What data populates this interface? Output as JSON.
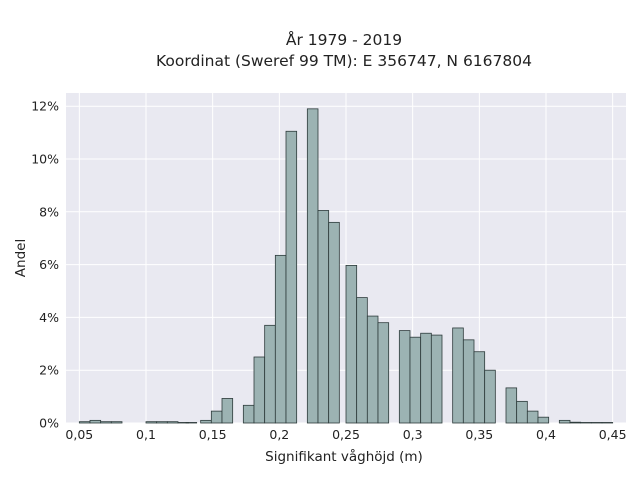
{
  "colors": {
    "plot_background": "#e9e9f1",
    "grid": "#ffffff",
    "bar_fill": "#9cb3b3",
    "bar_edge": "#2d3b3b",
    "text": "#222222"
  },
  "chart_data": {
    "type": "bar",
    "title": "År 1979 - 2019",
    "subtitle": "Koordinat (Sweref 99 TM): E 356747, N 6167804",
    "xlabel": "Signifikant våghöjd (m)",
    "ylabel": "Andel",
    "xlim": [
      0.04,
      0.46
    ],
    "ylim": [
      0,
      12.5
    ],
    "x_ticks": [
      0.05,
      0.1,
      0.15,
      0.2,
      0.25,
      0.3,
      0.35,
      0.4,
      0.45
    ],
    "x_tick_labels": [
      "0,05",
      "0,1",
      "0,15",
      "0,2",
      "0,25",
      "0,3",
      "0,35",
      "0,4",
      "0,45"
    ],
    "y_ticks": [
      0,
      2,
      4,
      6,
      8,
      10,
      12
    ],
    "y_tick_labels": [
      "0%",
      "2%",
      "4%",
      "6%",
      "8%",
      "10%",
      "12%"
    ],
    "grid": true,
    "bin_width": 0.008,
    "bin_starts": [
      0.05,
      0.058,
      0.066,
      0.074,
      0.1,
      0.108,
      0.116,
      0.124,
      0.13,
      0.141,
      0.149,
      0.157,
      0.173,
      0.181,
      0.189,
      0.197,
      0.205,
      0.221,
      0.229,
      0.237,
      0.25,
      0.258,
      0.266,
      0.274,
      0.29,
      0.298,
      0.306,
      0.314,
      0.33,
      0.338,
      0.346,
      0.354,
      0.37,
      0.378,
      0.386,
      0.394,
      0.41,
      0.418,
      0.426,
      0.434,
      0.442
    ],
    "values": [
      0.05,
      0.1,
      0.05,
      0.05,
      0.05,
      0.05,
      0.05,
      0.02,
      0.02,
      0.1,
      0.45,
      0.93,
      0.67,
      2.5,
      3.7,
      6.35,
      11.05,
      11.9,
      8.05,
      7.6,
      5.97,
      4.75,
      4.05,
      3.8,
      3.5,
      3.25,
      3.4,
      3.33,
      3.6,
      3.15,
      2.7,
      2.0,
      1.33,
      0.82,
      0.45,
      0.22,
      0.1,
      0.03,
      0.02,
      0.02,
      0.02
    ]
  }
}
